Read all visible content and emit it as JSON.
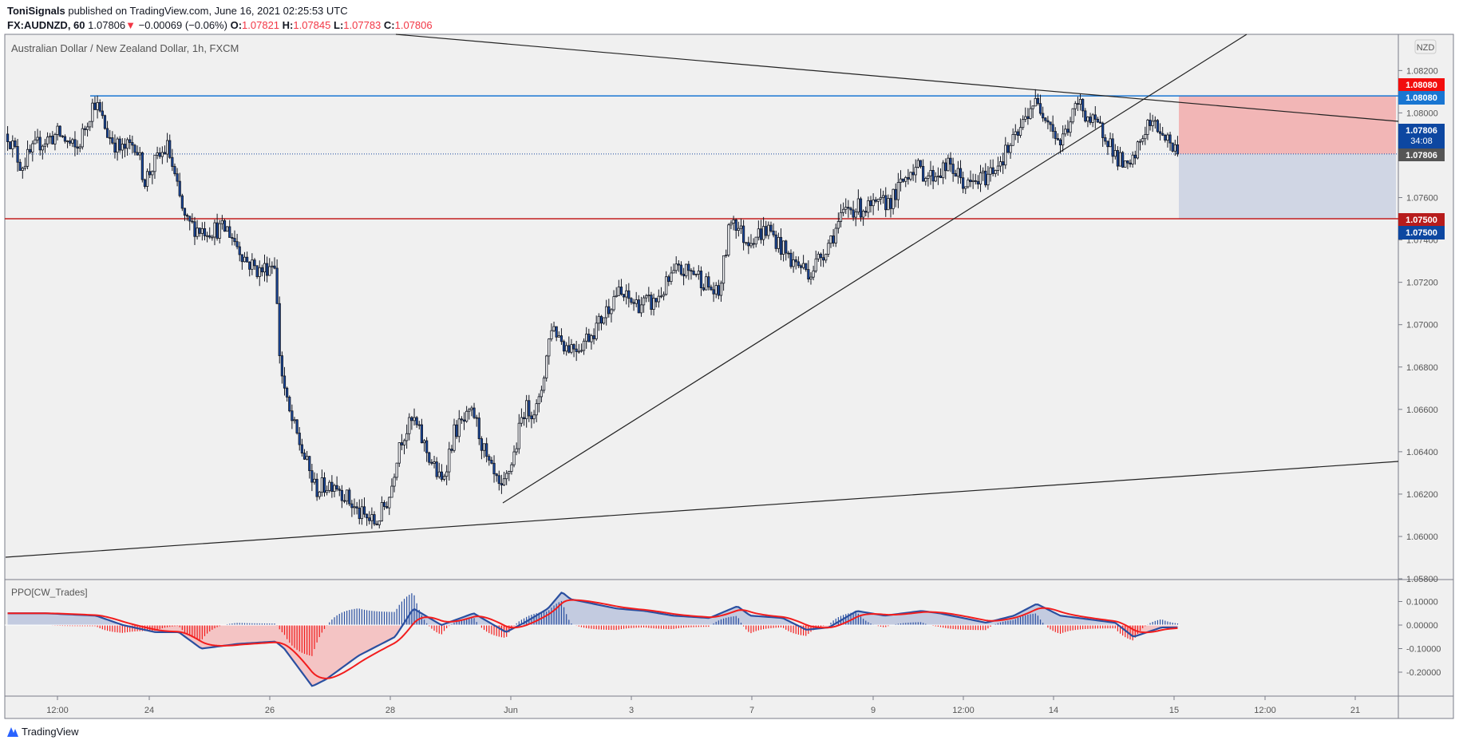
{
  "header": {
    "author": "ToniSignals",
    "published": "published on TradingView.com, June 16, 2021 02:25:53 UTC",
    "symbol": "FX:AUDNZD, 60",
    "last": "1.07806",
    "change": "−0.00069 (−0.06%)",
    "o_label": "O:",
    "o": "1.07821",
    "h_label": "H:",
    "h": "1.07845",
    "l_label": "L:",
    "l": "1.07783",
    "c_label": "C:",
    "c": "1.07806"
  },
  "legend": "Australian Dollar / New Zealand Dollar, 1h, FXCM",
  "currency_button": "NZD",
  "indicator_label": "PPO[CW_Trades]",
  "footer_logo": "TradingView",
  "colors": {
    "up_fill": "#ffffff",
    "down_fill": "#1848a0",
    "blue_line": "#1976d2",
    "red_line": "#c21f1f",
    "stop_zone": "#f2b6b6",
    "target_zone": "#d0d6e4",
    "ppo": "#2a4fa0",
    "signal": "#f21d1d"
  },
  "chart_data": [
    {
      "type": "candlestick",
      "title": "Australian Dollar / New Zealand Dollar, 1h, FXCM",
      "ylim": [
        1.0578,
        1.0836
      ],
      "y_ticks": [
        "1.08200",
        "1.08000",
        "1.07600",
        "1.07400",
        "1.07200",
        "1.07000",
        "1.06800",
        "1.06600",
        "1.06400",
        "1.06200",
        "1.06000",
        "1.05800"
      ],
      "x_ticks": [
        "12:00",
        "24",
        "26",
        "28",
        "Jun",
        "3",
        "7",
        "9",
        "12:00",
        "14",
        "15",
        "12:00",
        "21"
      ],
      "price_path": [
        [
          0,
          1.079
        ],
        [
          12,
          1.0775
        ],
        [
          29,
          1.0786
        ],
        [
          46,
          1.079
        ],
        [
          62,
          1.0782
        ],
        [
          78,
          1.0806
        ],
        [
          90,
          1.079
        ],
        [
          102,
          1.0782
        ],
        [
          115,
          1.0786
        ],
        [
          123,
          1.0768
        ],
        [
          132,
          1.0776
        ],
        [
          144,
          1.0784
        ],
        [
          152,
          1.0765
        ],
        [
          160,
          1.0748
        ],
        [
          173,
          1.0745
        ],
        [
          198,
          1.0745
        ],
        [
          215,
          1.073
        ],
        [
          227,
          1.0725
        ],
        [
          240,
          1.073
        ],
        [
          245,
          1.0682
        ],
        [
          252,
          1.066
        ],
        [
          265,
          1.064
        ],
        [
          277,
          1.0622
        ],
        [
          294,
          1.0626
        ],
        [
          315,
          1.0611
        ],
        [
          331,
          1.0606
        ],
        [
          344,
          1.062
        ],
        [
          352,
          1.0645
        ],
        [
          365,
          1.0655
        ],
        [
          377,
          1.064
        ],
        [
          390,
          1.0625
        ],
        [
          402,
          1.065
        ],
        [
          419,
          1.0658
        ],
        [
          431,
          1.0635
        ],
        [
          444,
          1.062
        ],
        [
          456,
          1.064
        ],
        [
          464,
          1.066
        ],
        [
          477,
          1.066
        ],
        [
          489,
          1.07
        ],
        [
          502,
          1.069
        ],
        [
          514,
          1.069
        ],
        [
          531,
          1.07
        ],
        [
          547,
          1.0715
        ],
        [
          564,
          1.071
        ],
        [
          581,
          1.071
        ],
        [
          601,
          1.0725
        ],
        [
          618,
          1.0725
        ],
        [
          639,
          1.0713
        ],
        [
          651,
          1.0752
        ],
        [
          663,
          1.074
        ],
        [
          684,
          1.0745
        ],
        [
          705,
          1.073
        ],
        [
          722,
          1.0725
        ],
        [
          734,
          1.0735
        ],
        [
          755,
          1.0755
        ],
        [
          780,
          1.0755
        ],
        [
          797,
          1.076
        ],
        [
          813,
          1.0775
        ],
        [
          830,
          1.077
        ],
        [
          847,
          1.0775
        ],
        [
          863,
          1.0765
        ],
        [
          880,
          1.077
        ],
        [
          896,
          1.078
        ],
        [
          909,
          1.079
        ],
        [
          921,
          1.0805
        ],
        [
          934,
          1.08
        ],
        [
          946,
          1.0785
        ],
        [
          963,
          1.0805
        ],
        [
          975,
          1.0795
        ],
        [
          988,
          1.079
        ],
        [
          996,
          1.078
        ],
        [
          1008,
          1.0772
        ],
        [
          1025,
          1.0795
        ],
        [
          1037,
          1.0792
        ],
        [
          1052,
          1.07806
        ]
      ],
      "last_price": "1.07806",
      "countdown": "34:08",
      "levels": {
        "resistance": "1.08080",
        "support": "1.07500",
        "position_stop": "1.08080",
        "position_target": "1.07500",
        "current": "1.07806"
      }
    },
    {
      "type": "line",
      "title": "PPO[CW_Trades]",
      "ylim": [
        -0.29,
        0.17
      ],
      "y_ticks": [
        "0.10000",
        "0.00000",
        "-0.10000",
        "-0.20000"
      ],
      "ppo_path": [
        [
          0,
          0.05
        ],
        [
          35,
          0.05
        ],
        [
          82,
          0.04
        ],
        [
          107,
          0.0
        ],
        [
          137,
          -0.03
        ],
        [
          159,
          -0.03
        ],
        [
          180,
          -0.1
        ],
        [
          214,
          -0.08
        ],
        [
          249,
          -0.07
        ],
        [
          257,
          -0.1
        ],
        [
          283,
          -0.26
        ],
        [
          296,
          -0.23
        ],
        [
          326,
          -0.13
        ],
        [
          360,
          -0.05
        ],
        [
          377,
          0.07
        ],
        [
          403,
          0.0
        ],
        [
          433,
          0.05
        ],
        [
          463,
          -0.03
        ],
        [
          480,
          0.01
        ],
        [
          502,
          0.07
        ],
        [
          515,
          0.14
        ],
        [
          523,
          0.11
        ],
        [
          566,
          0.07
        ],
        [
          592,
          0.06
        ],
        [
          618,
          0.04
        ],
        [
          652,
          0.03
        ],
        [
          678,
          0.08
        ],
        [
          690,
          0.04
        ],
        [
          720,
          0.03
        ],
        [
          742,
          -0.02
        ],
        [
          763,
          -0.01
        ],
        [
          789,
          0.06
        ],
        [
          815,
          0.04
        ],
        [
          849,
          0.06
        ],
        [
          866,
          0.05
        ],
        [
          909,
          0.01
        ],
        [
          935,
          0.04
        ],
        [
          956,
          0.09
        ],
        [
          978,
          0.04
        ],
        [
          1012,
          0.02
        ],
        [
          1029,
          0.01
        ],
        [
          1046,
          -0.05
        ],
        [
          1072,
          -0.01
        ],
        [
          1087,
          -0.01
        ]
      ]
    }
  ]
}
